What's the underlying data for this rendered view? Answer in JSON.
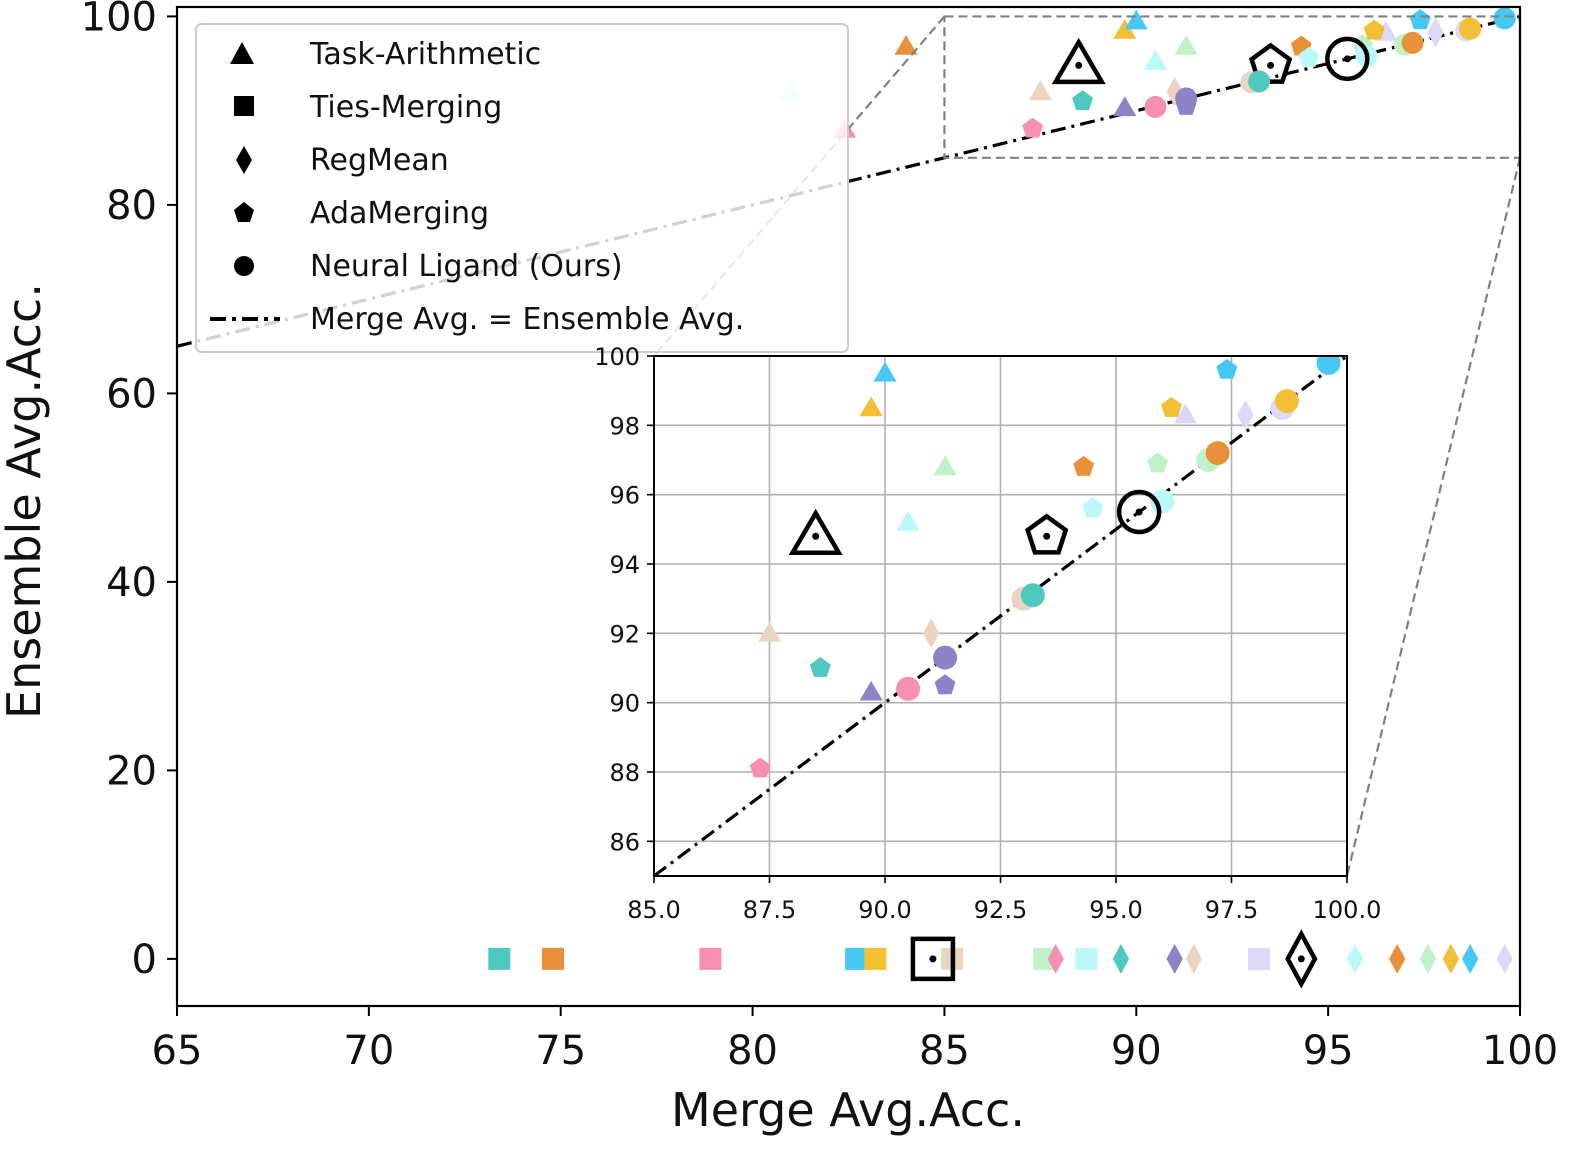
{
  "chart_data": {
    "type": "scatter",
    "xlabel": "Merge Avg.Acc.",
    "ylabel": "Ensemble Avg.Acc.",
    "xlim": [
      65,
      100
    ],
    "ylim": [
      -5,
      101
    ],
    "xticks": [
      "65",
      "70",
      "75",
      "80",
      "85",
      "90",
      "95",
      "100"
    ],
    "yticks": [
      "0",
      "20",
      "40",
      "60",
      "80",
      "100"
    ],
    "legend": {
      "position": "top-left",
      "entries": [
        {
          "label": "Task-Arithmetic",
          "marker": "triangle"
        },
        {
          "label": "Ties-Merging",
          "marker": "square"
        },
        {
          "label": "RegMean",
          "marker": "diamond"
        },
        {
          "label": "AdaMerging",
          "marker": "pentagon"
        },
        {
          "label": "Neural Ligand (Ours)",
          "marker": "circle"
        },
        {
          "label": "Merge Avg. = Ensemble Avg.",
          "marker": "dashdot-line"
        }
      ]
    },
    "reference_line": {
      "from": [
        65,
        65
      ],
      "to": [
        100,
        100
      ],
      "style": "dashdot"
    },
    "colors": {
      "teal": "#4ec9c0",
      "orange": "#e8913a",
      "pink": "#f78fb3",
      "sky": "#45c9f4",
      "gold": "#f2bf35",
      "tan": "#ecd5c0",
      "mint": "#bff2c6",
      "aqua": "#baf8fa",
      "purple": "#8d83c9",
      "lavender": "#dcd8f8"
    },
    "series": [
      {
        "method": "Task-Arithmetic",
        "marker": "triangle",
        "points": [
          {
            "x": 81.0,
            "y": 92.0,
            "color": "aqua"
          },
          {
            "x": 82.4,
            "y": 88.0,
            "color": "pink"
          },
          {
            "x": 84.0,
            "y": 96.8,
            "color": "orange"
          },
          {
            "x": 87.5,
            "y": 92.0,
            "color": "tan"
          },
          {
            "x": 89.7,
            "y": 90.3,
            "color": "purple"
          },
          {
            "x": 89.7,
            "y": 98.5,
            "color": "gold"
          },
          {
            "x": 90.0,
            "y": 99.5,
            "color": "sky"
          },
          {
            "x": 90.5,
            "y": 95.2,
            "color": "aqua"
          },
          {
            "x": 91.3,
            "y": 96.8,
            "color": "mint"
          },
          {
            "x": 96.5,
            "y": 98.3,
            "color": "lavender"
          }
        ],
        "average": {
          "x": 88.5,
          "y": 94.8
        }
      },
      {
        "method": "Ties-Merging",
        "marker": "square",
        "points": [
          {
            "x": 73.4,
            "y": 0,
            "color": "teal"
          },
          {
            "x": 74.8,
            "y": 0,
            "color": "orange"
          },
          {
            "x": 78.9,
            "y": 0,
            "color": "pink"
          },
          {
            "x": 82.7,
            "y": 0,
            "color": "sky"
          },
          {
            "x": 83.2,
            "y": 0,
            "color": "gold"
          },
          {
            "x": 85.2,
            "y": 0,
            "color": "tan"
          },
          {
            "x": 87.6,
            "y": 0,
            "color": "mint"
          },
          {
            "x": 88.7,
            "y": 0,
            "color": "aqua"
          },
          {
            "x": 93.2,
            "y": 0,
            "color": "lavender"
          }
        ],
        "average": {
          "x": 84.7,
          "y": 0
        }
      },
      {
        "method": "RegMean",
        "marker": "diamond",
        "points": [
          {
            "x": 87.9,
            "y": 0,
            "color": "pink"
          },
          {
            "x": 89.6,
            "y": 0,
            "color": "teal"
          },
          {
            "x": 91.0,
            "y": 0,
            "color": "purple"
          },
          {
            "x": 91.5,
            "y": 0,
            "color": "tan"
          },
          {
            "x": 95.7,
            "y": 0,
            "color": "aqua"
          },
          {
            "x": 96.8,
            "y": 0,
            "color": "orange"
          },
          {
            "x": 97.6,
            "y": 0,
            "color": "mint"
          },
          {
            "x": 98.2,
            "y": 0,
            "color": "gold"
          },
          {
            "x": 98.7,
            "y": 0,
            "color": "sky"
          },
          {
            "x": 99.6,
            "y": 0,
            "color": "lavender"
          },
          {
            "x": 91.0,
            "y": 92.0,
            "color": "tan"
          },
          {
            "x": 97.8,
            "y": 98.3,
            "color": "lavender"
          }
        ],
        "average": {
          "x": 94.3,
          "y": 0
        }
      },
      {
        "method": "AdaMerging",
        "marker": "pentagon",
        "points": [
          {
            "x": 87.3,
            "y": 88.1,
            "color": "pink"
          },
          {
            "x": 88.6,
            "y": 91.0,
            "color": "teal"
          },
          {
            "x": 91.3,
            "y": 90.5,
            "color": "purple"
          },
          {
            "x": 94.3,
            "y": 96.8,
            "color": "orange"
          },
          {
            "x": 94.5,
            "y": 95.6,
            "color": "aqua"
          },
          {
            "x": 95.9,
            "y": 96.9,
            "color": "mint"
          },
          {
            "x": 96.2,
            "y": 98.5,
            "color": "gold"
          },
          {
            "x": 97.4,
            "y": 99.6,
            "color": "sky"
          }
        ],
        "average": {
          "x": 93.5,
          "y": 94.8
        }
      },
      {
        "method": "Neural Ligand (Ours)",
        "marker": "circle",
        "points": [
          {
            "x": 90.5,
            "y": 90.4,
            "color": "pink"
          },
          {
            "x": 91.3,
            "y": 91.3,
            "color": "purple"
          },
          {
            "x": 93.0,
            "y": 93.0,
            "color": "tan"
          },
          {
            "x": 93.2,
            "y": 93.1,
            "color": "teal"
          },
          {
            "x": 96.0,
            "y": 95.8,
            "color": "aqua"
          },
          {
            "x": 97.0,
            "y": 97.0,
            "color": "mint"
          },
          {
            "x": 97.2,
            "y": 97.2,
            "color": "orange"
          },
          {
            "x": 98.6,
            "y": 98.5,
            "color": "lavender"
          },
          {
            "x": 98.7,
            "y": 98.7,
            "color": "gold"
          },
          {
            "x": 99.6,
            "y": 99.8,
            "color": "sky"
          }
        ],
        "average": {
          "x": 95.5,
          "y": 95.5
        }
      }
    ],
    "inset": {
      "xlim": [
        85,
        100
      ],
      "ylim": [
        85,
        100
      ],
      "xticks": [
        "85.0",
        "87.5",
        "90.0",
        "92.5",
        "95.0",
        "97.5",
        "100.0"
      ],
      "yticks": [
        "86",
        "88",
        "90",
        "92",
        "94",
        "96",
        "98",
        "100"
      ],
      "grid": true
    }
  }
}
